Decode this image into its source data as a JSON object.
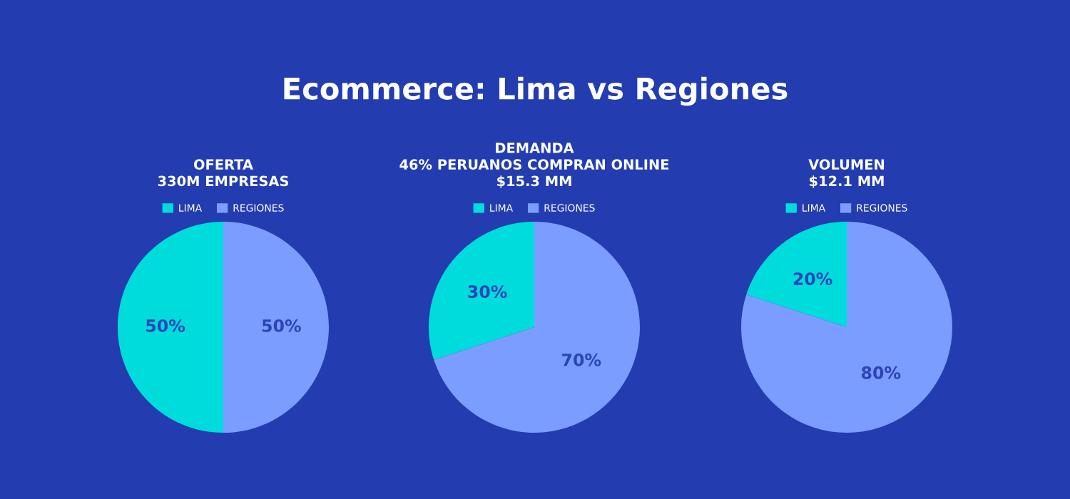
{
  "chart_data": [
    {
      "type": "pie",
      "title": "OFERTA\n330M EMPRESAS",
      "categories": [
        "LIMA",
        "REGIONES"
      ],
      "values": [
        50,
        50
      ],
      "colors": [
        "#00dcdc",
        "#7b9dff"
      ],
      "value_labels": [
        "50%",
        "50%"
      ],
      "legend": "top",
      "annotations": [
        "Ecommerce: Lima vs Regiones"
      ]
    },
    {
      "type": "pie",
      "title": "DEMANDA\n46% PERUANOS COMPRAN ONLINE\n$15.3 MM",
      "categories": [
        "LIMA",
        "REGIONES"
      ],
      "values": [
        30,
        70
      ],
      "colors": [
        "#00dcdc",
        "#7b9dff"
      ],
      "value_labels": [
        "30%",
        "70%"
      ],
      "legend": "top"
    },
    {
      "type": "pie",
      "title": "VOLUMEN\n$12.1 MM",
      "categories": [
        "LIMA",
        "REGIONES"
      ],
      "values": [
        20,
        80
      ],
      "colors": [
        "#00dcdc",
        "#7b9dff"
      ],
      "value_labels": [
        "20%",
        "80%"
      ],
      "legend": "top"
    }
  ]
}
